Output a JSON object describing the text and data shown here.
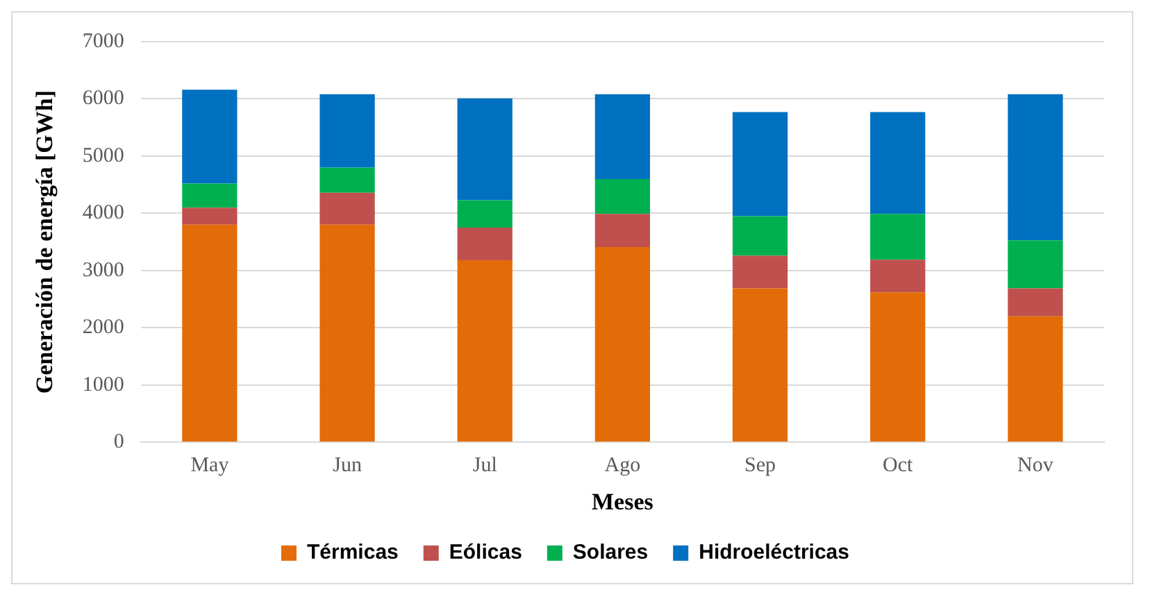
{
  "chart_data": {
    "type": "bar",
    "stacked": true,
    "xlabel": "Meses",
    "ylabel": "Generación de energía [GWh]",
    "categories": [
      "May",
      "Jun",
      "Jul",
      "Ago",
      "Sep",
      "Oct",
      "Nov"
    ],
    "series": [
      {
        "name": "Térmicas",
        "color": "#e36c09",
        "values": [
          3800,
          3800,
          3180,
          3410,
          2690,
          2620,
          2200
        ]
      },
      {
        "name": "Eólicas",
        "color": "#c0504d",
        "values": [
          300,
          560,
          570,
          580,
          570,
          570,
          490
        ]
      },
      {
        "name": "Solares",
        "color": "#00b050",
        "values": [
          420,
          440,
          480,
          610,
          690,
          800,
          840
        ]
      },
      {
        "name": "Hidroeléctricas",
        "color": "#0070c0",
        "values": [
          1640,
          1280,
          1780,
          1480,
          1820,
          1780,
          2550
        ]
      }
    ],
    "ylim": [
      0,
      7000
    ],
    "yticks": [
      0,
      1000,
      2000,
      3000,
      4000,
      5000,
      6000,
      7000
    ],
    "grid": "y",
    "legend": "bottom"
  }
}
